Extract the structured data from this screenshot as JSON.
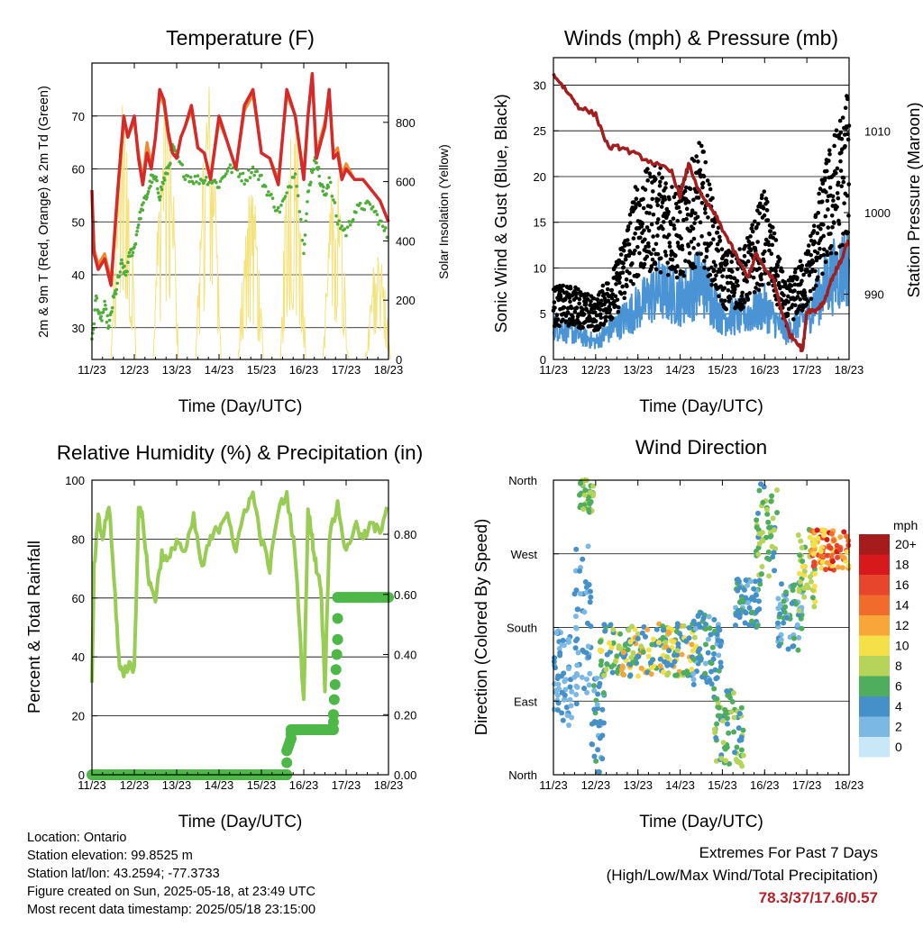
{
  "charts": {
    "temperature": {
      "title": "Temperature (F)",
      "ylabel": "2m & 9m T (Red, Orange) & 2m Td (Green)",
      "y2label": "Solar Insolation (Yellow)",
      "xlabel": "Time (Day/UTC)"
    },
    "winds": {
      "title": "Winds (mph) & Pressure (mb)",
      "ylabel": "Sonic Wind & Gust (Blue, Black)",
      "y2label": "Station Pressure (Maroon)",
      "xlabel": "Time (Day/UTC)"
    },
    "rh": {
      "title": "Relative Humidity (%) & Precipitation (in)",
      "ylabel": "Percent & Total Rainfall",
      "xlabel": "Time (Day/UTC)"
    },
    "wdir": {
      "title": "Wind Direction",
      "ylabel": "Direction (Colored By Speed)",
      "xlabel": "Time (Day/UTC)",
      "legend_title": "mph"
    }
  },
  "info": {
    "location": "Location: Ontario",
    "elevation": "Station elevation: 99.8525 m",
    "latlon": "Station lat/lon: 43.2594; -77.3733",
    "created": "Figure created on Sun, 2025-05-18, at 23:49 UTC",
    "recent": "Most recent data timestamp: 2025/05/18 23:15:00"
  },
  "extremes": {
    "line1": "Extremes For Past 7 Days",
    "line2": "(High/Low/Max Wind/Total Precipitation)",
    "values": "78.3/37/17.6/0.57"
  },
  "chart_data": [
    {
      "type": "line",
      "x_ticks": [
        "11/23",
        "12/23",
        "13/23",
        "14/23",
        "15/23",
        "16/23",
        "17/23",
        "18/23"
      ],
      "xlim": [
        0,
        7
      ],
      "ylim": [
        24,
        80
      ],
      "yticks": [
        30,
        40,
        50,
        60,
        70
      ],
      "y2lim": [
        0,
        1000
      ],
      "y2ticks": [
        0,
        200,
        400,
        600,
        800
      ],
      "colors": {
        "t2m": "#d62a2a",
        "t9m": "#f08a30",
        "td": "#4fae3a",
        "solar": "#f5e27a"
      },
      "series": [
        {
          "key": "t2m",
          "x": [
            0,
            0.05,
            0.15,
            0.3,
            0.45,
            0.6,
            0.75,
            0.85,
            1.0,
            1.1,
            1.2,
            1.3,
            1.4,
            1.5,
            1.6,
            1.7,
            1.8,
            1.9,
            2.0,
            2.1,
            2.2,
            2.35,
            2.5,
            2.65,
            2.8,
            3.0,
            3.2,
            3.4,
            3.6,
            3.8,
            4.0,
            4.2,
            4.4,
            4.6,
            4.8,
            5.0,
            5.1,
            5.2,
            5.3,
            5.4,
            5.5,
            5.6,
            5.7,
            5.8,
            5.9,
            6.0,
            6.2,
            6.4,
            6.6,
            6.8,
            7.0
          ],
          "y": [
            56,
            44,
            41,
            43,
            38,
            55,
            70,
            66,
            70,
            62,
            57,
            63,
            60,
            66,
            75,
            73,
            67,
            63,
            62,
            66,
            68,
            72,
            64,
            63,
            58,
            70,
            65,
            60,
            72,
            75,
            63,
            62,
            57,
            75,
            70,
            58,
            70,
            78,
            62,
            65,
            68,
            75,
            62,
            63,
            58,
            60,
            58,
            58,
            56,
            54,
            50
          ]
        },
        {
          "key": "t9m",
          "x": [
            0,
            0.05,
            0.15,
            0.3,
            0.45,
            0.6,
            0.75,
            0.85,
            1.0,
            1.1,
            1.2,
            1.3,
            1.4,
            1.5,
            1.6,
            1.7,
            1.8,
            1.9,
            2.0,
            2.1,
            2.2,
            2.35,
            2.5,
            2.65,
            2.8,
            3.0,
            3.2,
            3.4,
            3.6,
            3.8,
            4.0,
            4.2,
            4.4,
            4.6,
            4.8,
            5.0,
            5.1,
            5.2,
            5.3,
            5.4,
            5.5,
            5.6,
            5.7,
            5.8,
            5.9,
            6.0,
            6.2,
            6.4,
            6.6,
            6.8,
            7.0
          ],
          "y": [
            55,
            45,
            42,
            44,
            39,
            54,
            69,
            66,
            69,
            63,
            58,
            65,
            61,
            66,
            74,
            72,
            66,
            63,
            62,
            66,
            68,
            71,
            64,
            63,
            58,
            69,
            65,
            60,
            71,
            74,
            63,
            62,
            58,
            74,
            70,
            59,
            70,
            77,
            63,
            66,
            69,
            74,
            63,
            64,
            59,
            61,
            58,
            58,
            56,
            54,
            50
          ]
        },
        {
          "key": "td",
          "x": [
            0,
            0.1,
            0.2,
            0.3,
            0.4,
            0.5,
            0.6,
            0.7,
            0.8,
            0.9,
            1.0,
            1.1,
            1.2,
            1.3,
            1.4,
            1.5,
            1.6,
            1.7,
            1.8,
            1.9,
            2.0,
            2.2,
            2.4,
            2.6,
            2.8,
            3.0,
            3.2,
            3.4,
            3.6,
            3.8,
            4.0,
            4.2,
            4.4,
            4.6,
            4.8,
            5.0,
            5.1,
            5.2,
            5.3,
            5.4,
            5.5,
            5.6,
            5.8,
            6.0,
            6.2,
            6.4,
            6.6,
            6.8,
            7.0
          ],
          "y": [
            27,
            36,
            31,
            34,
            30,
            35,
            38,
            42,
            40,
            44,
            45,
            50,
            53,
            55,
            58,
            58,
            55,
            58,
            60,
            64,
            62,
            59,
            58,
            58,
            58,
            57,
            60,
            60,
            58,
            60,
            58,
            55,
            52,
            55,
            60,
            45,
            55,
            60,
            62,
            57,
            55,
            58,
            50,
            48,
            52,
            53,
            53,
            50,
            47
          ]
        },
        {
          "key": "solar",
          "days": [
            0,
            1,
            2,
            3,
            4,
            5,
            6
          ],
          "peaks": [
            880,
            950,
            950,
            620,
            960,
            660,
            380
          ]
        }
      ]
    },
    {
      "type": "scatter",
      "x_ticks": [
        "11/23",
        "12/23",
        "13/23",
        "14/23",
        "15/23",
        "16/23",
        "17/23",
        "18/23"
      ],
      "xlim": [
        0,
        7
      ],
      "ylim": [
        0,
        33
      ],
      "yticks": [
        0,
        5,
        10,
        15,
        20,
        25,
        30
      ],
      "y2lim": [
        982,
        1019
      ],
      "y2ticks": [
        990,
        1000,
        1010
      ],
      "colors": {
        "wind": "#4a93d4",
        "gust": "#000000",
        "pressure": "#a31f1f"
      },
      "series": [
        {
          "key": "wind_env",
          "x": [
            0,
            0.5,
            1,
            1.5,
            2,
            2.5,
            3,
            3.5,
            4,
            4.5,
            5,
            5.5,
            6,
            6.5,
            7
          ],
          "y": [
            4,
            3,
            2,
            4,
            6,
            8,
            7,
            9,
            5,
            5,
            6,
            3,
            5,
            9,
            11
          ]
        },
        {
          "key": "gust_env",
          "x": [
            0,
            0.5,
            1,
            1.5,
            2,
            2.5,
            3,
            3.5,
            4,
            4.5,
            5,
            5.5,
            6,
            6.5,
            7
          ],
          "y": [
            6,
            6,
            5,
            8,
            15,
            16,
            14,
            18,
            9,
            9,
            14,
            6,
            9,
            17,
            22
          ]
        },
        {
          "key": "pressure",
          "x": [
            0,
            0.3,
            0.6,
            1.0,
            1.3,
            1.6,
            2.0,
            2.4,
            2.8,
            3.0,
            3.2,
            3.5,
            3.8,
            4.0,
            4.3,
            4.6,
            4.8,
            5.0,
            5.2,
            5.4,
            5.6,
            5.8,
            5.9,
            6.0,
            6.2,
            6.4,
            6.6,
            6.8,
            7.0
          ],
          "y": [
            1017,
            1015,
            1013,
            1012,
            1008,
            1008,
            1007,
            1006,
            1005,
            1002,
            1006,
            1002,
            1000,
            998,
            995,
            992,
            995,
            993,
            992,
            988,
            985,
            984,
            983,
            988,
            988,
            989,
            992,
            994,
            997
          ]
        }
      ]
    },
    {
      "type": "line",
      "x_ticks": [
        "11/23",
        "12/23",
        "13/23",
        "14/23",
        "15/23",
        "16/23",
        "17/23",
        "18/23"
      ],
      "xlim": [
        0,
        7
      ],
      "ylim": [
        0,
        100
      ],
      "yticks": [
        0,
        20,
        40,
        60,
        80,
        100
      ],
      "y2ticks": [
        0.0,
        0.2,
        0.4,
        0.6,
        0.8
      ],
      "y2ticklabels": [
        "0.00",
        "0.20",
        "0.40",
        "0.60",
        "0.80"
      ],
      "colors": {
        "rh": "#99cc55",
        "rain": "#4db848"
      },
      "series": [
        {
          "key": "rh",
          "x": [
            0,
            0.05,
            0.15,
            0.25,
            0.4,
            0.55,
            0.65,
            0.75,
            0.85,
            1.0,
            1.1,
            1.2,
            1.35,
            1.5,
            1.65,
            1.8,
            2.0,
            2.2,
            2.4,
            2.6,
            2.8,
            3.0,
            3.2,
            3.4,
            3.6,
            3.8,
            4.0,
            4.2,
            4.4,
            4.6,
            4.8,
            5.0,
            5.1,
            5.2,
            5.3,
            5.4,
            5.5,
            5.6,
            5.8,
            6.0,
            6.2,
            6.4,
            6.6,
            6.8,
            7.0
          ],
          "y": [
            30,
            70,
            87,
            80,
            92,
            60,
            36,
            35,
            37,
            36,
            90,
            87,
            65,
            60,
            75,
            72,
            80,
            75,
            87,
            70,
            80,
            84,
            90,
            75,
            90,
            95,
            80,
            70,
            90,
            95,
            75,
            25,
            90,
            80,
            70,
            65,
            30,
            80,
            92,
            75,
            85,
            80,
            85,
            82,
            95
          ]
        },
        {
          "key": "rain",
          "x": [
            0,
            4.6,
            4.6,
            4.7,
            4.7,
            5.7,
            5.7,
            5.8,
            5.8,
            7.0
          ],
          "y": [
            0.0,
            0.0,
            0.08,
            0.12,
            0.15,
            0.15,
            0.2,
            0.45,
            0.59,
            0.59
          ]
        }
      ]
    },
    {
      "type": "scatter",
      "x_ticks": [
        "11/23",
        "12/23",
        "13/23",
        "14/23",
        "15/23",
        "16/23",
        "17/23",
        "18/23"
      ],
      "xlim": [
        0,
        7
      ],
      "yticks": [
        "North",
        "East",
        "South",
        "West",
        "North"
      ],
      "ylim_deg": [
        0,
        360
      ],
      "legend": [
        "20+",
        "18",
        "16",
        "14",
        "12",
        "10",
        "8",
        "6",
        "4",
        "2",
        "0"
      ],
      "legend_colors": [
        "#a61c1c",
        "#d7191c",
        "#e8452d",
        "#f06b2c",
        "#f8a63a",
        "#f5e04a",
        "#b6d35a",
        "#4fae5e",
        "#4590c8",
        "#7bb8e3",
        "#c8e8f8"
      ],
      "clusters": [
        {
          "x": [
            0,
            0.6
          ],
          "deg": [
            60,
            180
          ],
          "spd": [
            1,
            4
          ]
        },
        {
          "x": [
            0.5,
            0.9
          ],
          "deg": [
            100,
            280
          ],
          "spd": [
            1,
            5
          ]
        },
        {
          "x": [
            0.6,
            0.95
          ],
          "deg": [
            320,
            360
          ],
          "spd": [
            5,
            8
          ]
        },
        {
          "x": [
            0.9,
            1.2
          ],
          "deg": [
            0,
            120
          ],
          "spd": [
            2,
            6
          ]
        },
        {
          "x": [
            1.1,
            3.4
          ],
          "deg": [
            120,
            185
          ],
          "spd": [
            3,
            12
          ]
        },
        {
          "x": [
            3.3,
            4.0
          ],
          "deg": [
            110,
            200
          ],
          "spd": [
            2,
            6
          ]
        },
        {
          "x": [
            3.8,
            4.5
          ],
          "deg": [
            10,
            110
          ],
          "spd": [
            4,
            8
          ]
        },
        {
          "x": [
            4.3,
            4.9
          ],
          "deg": [
            180,
            240
          ],
          "spd": [
            2,
            6
          ]
        },
        {
          "x": [
            4.8,
            5.3
          ],
          "deg": [
            240,
            360
          ],
          "spd": [
            4,
            9
          ]
        },
        {
          "x": [
            5.3,
            5.9
          ],
          "deg": [
            150,
            240
          ],
          "spd": [
            2,
            6
          ]
        },
        {
          "x": [
            5.8,
            6.2
          ],
          "deg": [
            200,
            300
          ],
          "spd": [
            6,
            10
          ]
        },
        {
          "x": [
            6.1,
            7.0
          ],
          "deg": [
            250,
            300
          ],
          "spd": [
            9,
            18
          ]
        }
      ]
    }
  ]
}
